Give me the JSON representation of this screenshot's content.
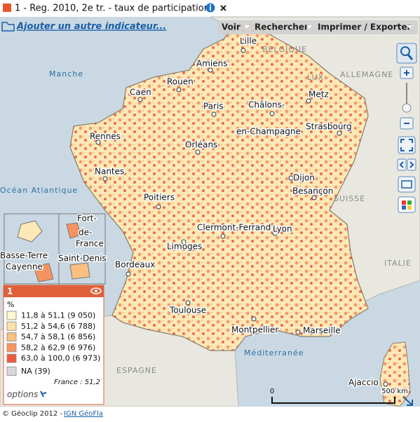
{
  "header": {
    "title": "1 - Reg. 2010, 2e tr. - taux de participation",
    "add_indicator": "Ajouter un autre indicateur..."
  },
  "menu": [
    "Voir",
    "Rechercher",
    "Imprimer / Exporter"
  ],
  "map": {
    "cities": [
      "Lille",
      "Amiens",
      "Rouen",
      "Caen",
      "Paris",
      "Metz",
      "Châlons-",
      "en-Champagne",
      "Strasbourg",
      "Rennes",
      "Orléans",
      "Nantes",
      "Dijon",
      "Besançon",
      "Poitiers",
      "Clermont-Ferrand",
      "Lyon",
      "Limoges",
      "Bordeaux",
      "Toulouse",
      "Montpellier",
      "Marseille",
      "Ajaccio"
    ],
    "countries": [
      "BELGIQUE",
      "ALLEMAGNE",
      "LUX",
      "SUISSE",
      "ITALIE",
      "ESPAGNE"
    ],
    "seas": [
      "Manche",
      "Océan Atlantique",
      "Méditerranée"
    ],
    "overseas": [
      "Fort-",
      "de-",
      "France",
      "Basse-Terre",
      "Saint-Denis",
      "Cayenne"
    ],
    "scale": [
      "0",
      "500 km"
    ]
  },
  "legend": {
    "title": "1",
    "unit": "%",
    "classes": [
      {
        "label": "11,8 à 51,1 (9 050)",
        "color": "#fff8cc"
      },
      {
        "label": "51,2 à 54,6 (6 788)",
        "color": "#fde3a6"
      },
      {
        "label": "54,7 à 58,1 (6 856)",
        "color": "#fbbf80"
      },
      {
        "label": "58,2 à 62,9 (6 976)",
        "color": "#f7935f"
      },
      {
        "label": "63,0 à 100,0 (6 973)",
        "color": "#ef5a3c"
      }
    ],
    "na": {
      "label": "NA (39)",
      "color": "#d9d9d9"
    },
    "average": "France : 51,2",
    "options": "options"
  },
  "footer": {
    "copyright": "© Géoclip 2012 - ",
    "link": "IGN GéoFla"
  }
}
